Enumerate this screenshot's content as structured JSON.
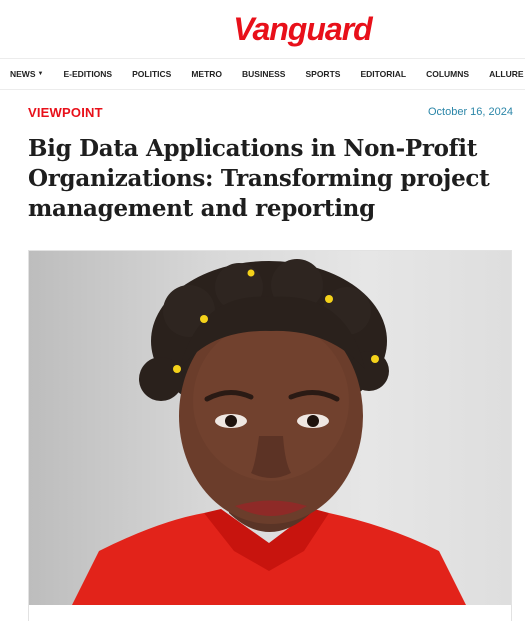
{
  "masthead": {
    "logo": "Vanguard"
  },
  "nav": {
    "items": [
      {
        "label": "NEWS",
        "has_dropdown": true
      },
      {
        "label": "E-EDITIONS"
      },
      {
        "label": "POLITICS"
      },
      {
        "label": "METRO"
      },
      {
        "label": "BUSINESS"
      },
      {
        "label": "SPORTS"
      },
      {
        "label": "EDITORIAL"
      },
      {
        "label": "COLUMNS"
      },
      {
        "label": "ALLURE"
      }
    ]
  },
  "article": {
    "category": "VIEWPOINT",
    "date": "October 16, 2024",
    "headline": "Big Data Applications in Non-Profit Organizations: Transforming project management and reporting"
  },
  "colors": {
    "brand": "#e8101a",
    "date": "#2b86a8"
  }
}
